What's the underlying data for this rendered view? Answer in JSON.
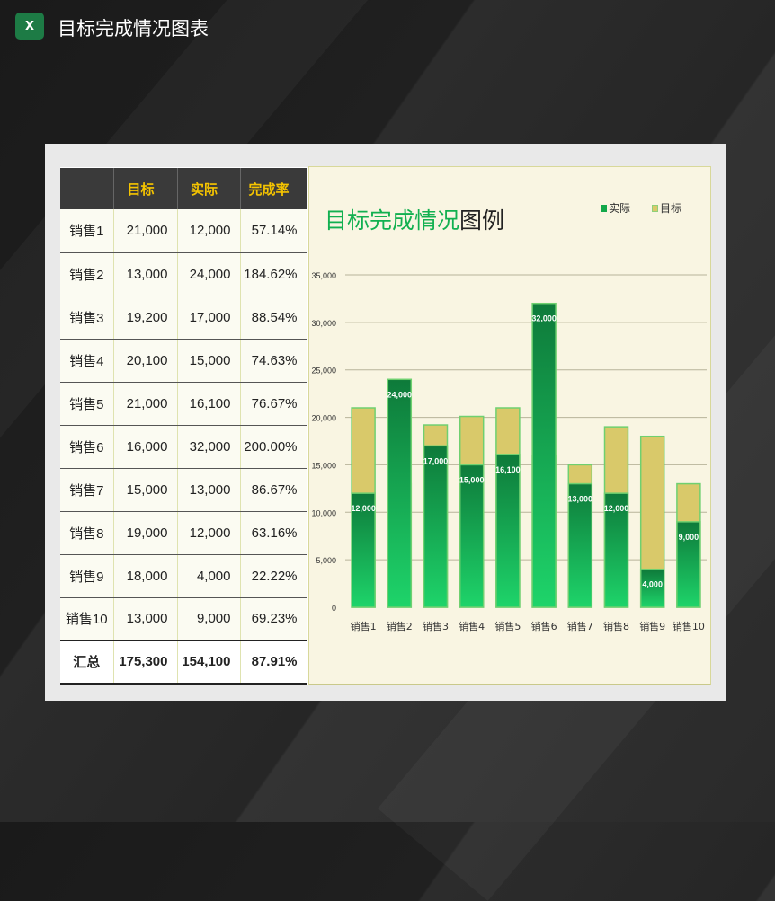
{
  "window": {
    "title": "目标完成情况图表",
    "app_icon": "excel-icon",
    "icon_letter": "X"
  },
  "table": {
    "headers": [
      "",
      "目标",
      "实际",
      "完成率"
    ],
    "rows": [
      [
        "销售1",
        "21,000",
        "12,000",
        "57.14%"
      ],
      [
        "销售2",
        "13,000",
        "24,000",
        "184.62%"
      ],
      [
        "销售3",
        "19,200",
        "17,000",
        "88.54%"
      ],
      [
        "销售4",
        "20,100",
        "15,000",
        "74.63%"
      ],
      [
        "销售5",
        "21,000",
        "16,100",
        "76.67%"
      ],
      [
        "销售6",
        "16,000",
        "32,000",
        "200.00%"
      ],
      [
        "销售7",
        "15,000",
        "13,000",
        "86.67%"
      ],
      [
        "销售8",
        "19,000",
        "12,000",
        "63.16%"
      ],
      [
        "销售9",
        "18,000",
        "4,000",
        "22.22%"
      ],
      [
        "销售10",
        "13,000",
        "9,000",
        "69.23%"
      ]
    ],
    "total": [
      "汇总",
      "175,300",
      "154,100",
      "87.91%"
    ]
  },
  "chart_data": {
    "type": "bar",
    "title_green": "目标完成情况",
    "title_dark": "图例",
    "categories": [
      "销售1",
      "销售2",
      "销售3",
      "销售4",
      "销售5",
      "销售6",
      "销售7",
      "销售8",
      "销售9",
      "销售10"
    ],
    "series": [
      {
        "name": "实际",
        "values": [
          12000,
          24000,
          17000,
          15000,
          16100,
          32000,
          13000,
          12000,
          4000,
          9000
        ],
        "color": "#12a84a"
      },
      {
        "name": "目标",
        "values": [
          21000,
          13000,
          19200,
          20100,
          21000,
          16000,
          15000,
          19000,
          18000,
          13000
        ],
        "color": "#d9c96a"
      }
    ],
    "data_labels": [
      "12,000",
      "24,000",
      "17,000",
      "15,000",
      "16,100",
      "32,000",
      "13,000",
      "12,000",
      "4,000",
      "9,000"
    ],
    "yticks": [
      "0",
      "5,000",
      "10,000",
      "15,000",
      "20,000",
      "25,000",
      "30,000",
      "35,000"
    ],
    "ylim": [
      0,
      35000
    ],
    "grid": true,
    "legend": "top-right"
  }
}
